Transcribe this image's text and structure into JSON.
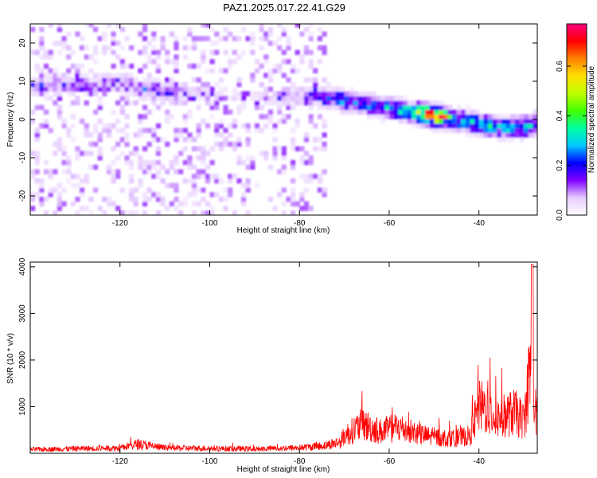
{
  "title": "PAZ1.2025.017.22.41.G29",
  "chart_data": [
    {
      "type": "heatmap",
      "xlabel": "Height of straight line (km)",
      "ylabel": "Frequency (Hz)",
      "xlim": [
        -140,
        -27
      ],
      "ylim": [
        -25,
        25
      ],
      "xticks": [
        -120,
        -100,
        -80,
        -60,
        -40
      ],
      "yticks": [
        20,
        10,
        0,
        -10,
        -20
      ],
      "colorbar": {
        "label": "Normalized spectral amplitude",
        "range": [
          0.0,
          0.77
        ],
        "ticks": [
          0.0,
          0.2,
          0.4,
          0.6
        ],
        "colors": [
          "#ffffff",
          "#e6ccff",
          "#8000ff",
          "#0000ff",
          "#00c8ff",
          "#00ffa0",
          "#40ff00",
          "#c0ff00",
          "#ffe000",
          "#ff8000",
          "#ff0000",
          "#ff0080"
        ]
      },
      "ridge": {
        "x": [
          -130,
          -120,
          -115,
          -100,
          -90,
          -80,
          -75,
          -70,
          -65,
          -60,
          -55,
          -50,
          -45,
          -40,
          -35,
          -30,
          -27
        ],
        "y": [
          9,
          10,
          8,
          7,
          6,
          6,
          6,
          5,
          4,
          3,
          2,
          1,
          0,
          -1,
          -2,
          -2,
          -1
        ],
        "peak_amplitude": [
          0.12,
          0.1,
          0.15,
          0.04,
          0.04,
          0.1,
          0.18,
          0.3,
          0.25,
          0.3,
          0.35,
          0.77,
          0.3,
          0.35,
          0.3,
          0.35,
          0.3
        ]
      }
    },
    {
      "type": "line",
      "xlabel": "Height of straight line (km)",
      "ylabel": "SNR (10 * v/v)",
      "xlim": [
        -140,
        -27
      ],
      "ylim": [
        0,
        4100
      ],
      "xticks": [
        -120,
        -100,
        -80,
        -60,
        -40
      ],
      "yticks": [
        1000,
        2000,
        3000,
        4000
      ],
      "color": "#ff0000",
      "envelope": {
        "x": [
          -140,
          -130,
          -120,
          -116,
          -110,
          -100,
          -90,
          -80,
          -75,
          -71,
          -70,
          -68,
          -66,
          -62,
          -58,
          -55,
          -52,
          -50,
          -46,
          -42,
          -40,
          -38,
          -36,
          -34,
          -32,
          -30,
          -28.5,
          -27.5,
          -27
        ],
        "y": [
          130,
          160,
          180,
          320,
          180,
          170,
          150,
          190,
          250,
          380,
          600,
          800,
          1000,
          750,
          900,
          750,
          600,
          550,
          500,
          600,
          1600,
          1500,
          1200,
          1300,
          1400,
          1100,
          3000,
          1500,
          1200
        ]
      }
    }
  ]
}
